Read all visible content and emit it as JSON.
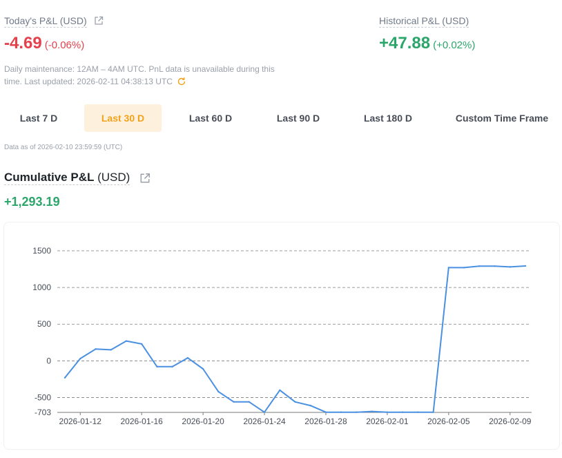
{
  "today_pnl": {
    "label": "Today's P&L (USD)",
    "value": "-4.69",
    "percent": "(-0.06%)"
  },
  "historical_pnl": {
    "label": "Historical P&L (USD)",
    "value": "+47.88",
    "percent": "(+0.02%)"
  },
  "maintenance_note": {
    "line1": "Daily maintenance: 12AM – 4AM UTC. PnL data is unavailable during this",
    "line2": "time. Last updated: 2026-02-11 04:38:13 UTC"
  },
  "tabs": [
    {
      "label": "Last 7 D",
      "active": false
    },
    {
      "label": "Last 30 D",
      "active": true
    },
    {
      "label": "Last 60 D",
      "active": false
    },
    {
      "label": "Last 90 D",
      "active": false
    },
    {
      "label": "Last 180 D",
      "active": false
    },
    {
      "label": "Custom Time Frame",
      "active": false
    }
  ],
  "data_as_of": "Data as of 2026-02-10 23:59:59 (UTC)",
  "cumulative": {
    "label_bold": "Cumulative P&L",
    "label_unit": "(USD)",
    "value": "+1,293.19"
  },
  "colors": {
    "negative": "#e5414c",
    "positive": "#2ca56a",
    "accent": "#f0a21b",
    "line": "#4a90e2"
  },
  "icons": {
    "external": "external-link-icon",
    "refresh": "refresh-icon"
  },
  "chart_data": {
    "type": "line",
    "x": [
      "2026-01-11",
      "2026-01-12",
      "2026-01-13",
      "2026-01-14",
      "2026-01-15",
      "2026-01-16",
      "2026-01-17",
      "2026-01-18",
      "2026-01-19",
      "2026-01-20",
      "2026-01-21",
      "2026-01-22",
      "2026-01-23",
      "2026-01-24",
      "2026-01-25",
      "2026-01-26",
      "2026-01-27",
      "2026-01-28",
      "2026-01-29",
      "2026-01-30",
      "2026-01-31",
      "2026-02-01",
      "2026-02-02",
      "2026-02-03",
      "2026-02-04",
      "2026-02-05",
      "2026-02-06",
      "2026-02-07",
      "2026-02-08",
      "2026-02-09",
      "2026-02-10"
    ],
    "values": [
      -230,
      30,
      160,
      150,
      270,
      230,
      -80,
      -80,
      40,
      -110,
      -420,
      -560,
      -560,
      -700,
      -400,
      -560,
      -610,
      -700,
      -700,
      -700,
      -690,
      -700,
      -700,
      -700,
      -700,
      1270,
      1270,
      1290,
      1290,
      1280,
      1293
    ],
    "y_ticks": [
      1500,
      1000,
      500,
      0,
      -500,
      -703
    ],
    "y_tick_labels": [
      "1500",
      "1000",
      "500",
      "0",
      "-500",
      "-703"
    ],
    "ylim": [
      -703,
      1500
    ],
    "x_tick_labels": [
      "2026-01-12",
      "2026-01-16",
      "2026-01-20",
      "2026-01-24",
      "2026-01-28",
      "2026-02-01",
      "2026-02-05",
      "2026-02-09"
    ],
    "grid": true
  }
}
